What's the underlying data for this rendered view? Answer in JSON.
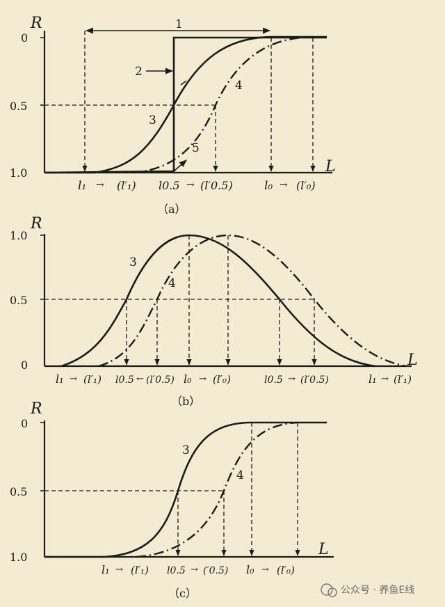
{
  "panels": [
    {
      "id": "a",
      "caption": "（a）",
      "y_axis_title": "R",
      "x_axis_title": "L",
      "y_ticks": [
        "0",
        "0.5",
        "1.0"
      ],
      "x_ticks": [
        "l₁",
        "→",
        "(l′₁)",
        "l0.5",
        "→",
        "(l′0.5)",
        "l₀",
        "→",
        "(l′₀)"
      ],
      "curve_labels": [
        "1",
        "2",
        "3",
        "4",
        "5"
      ]
    },
    {
      "id": "b",
      "caption": "（b）",
      "y_axis_title": "R",
      "x_axis_title": "L",
      "y_ticks": [
        "1.0",
        "0.5",
        "0"
      ],
      "x_ticks": [
        "l₁",
        "→",
        "(l′₁)",
        "l0.5",
        "←",
        "(l′0.5)",
        "l₀",
        "→",
        "(l′₀)",
        "l0.5",
        "→",
        "(l′0.5)",
        "l₁",
        "→",
        "(l′₁)"
      ],
      "curve_labels": [
        "3",
        "4"
      ]
    },
    {
      "id": "c",
      "caption": "（c）",
      "y_axis_title": "R",
      "x_axis_title": "L",
      "y_ticks": [
        "0",
        "0.5",
        "1.0"
      ],
      "x_ticks": [
        "l₁",
        "→",
        "(l′₁)",
        "l0.5",
        "→",
        "(′0.5)",
        "l₀",
        "→",
        "(l′₀)"
      ],
      "curve_labels": [
        "3",
        "4"
      ]
    }
  ],
  "watermark": "公众号 · 养鱼E线"
}
